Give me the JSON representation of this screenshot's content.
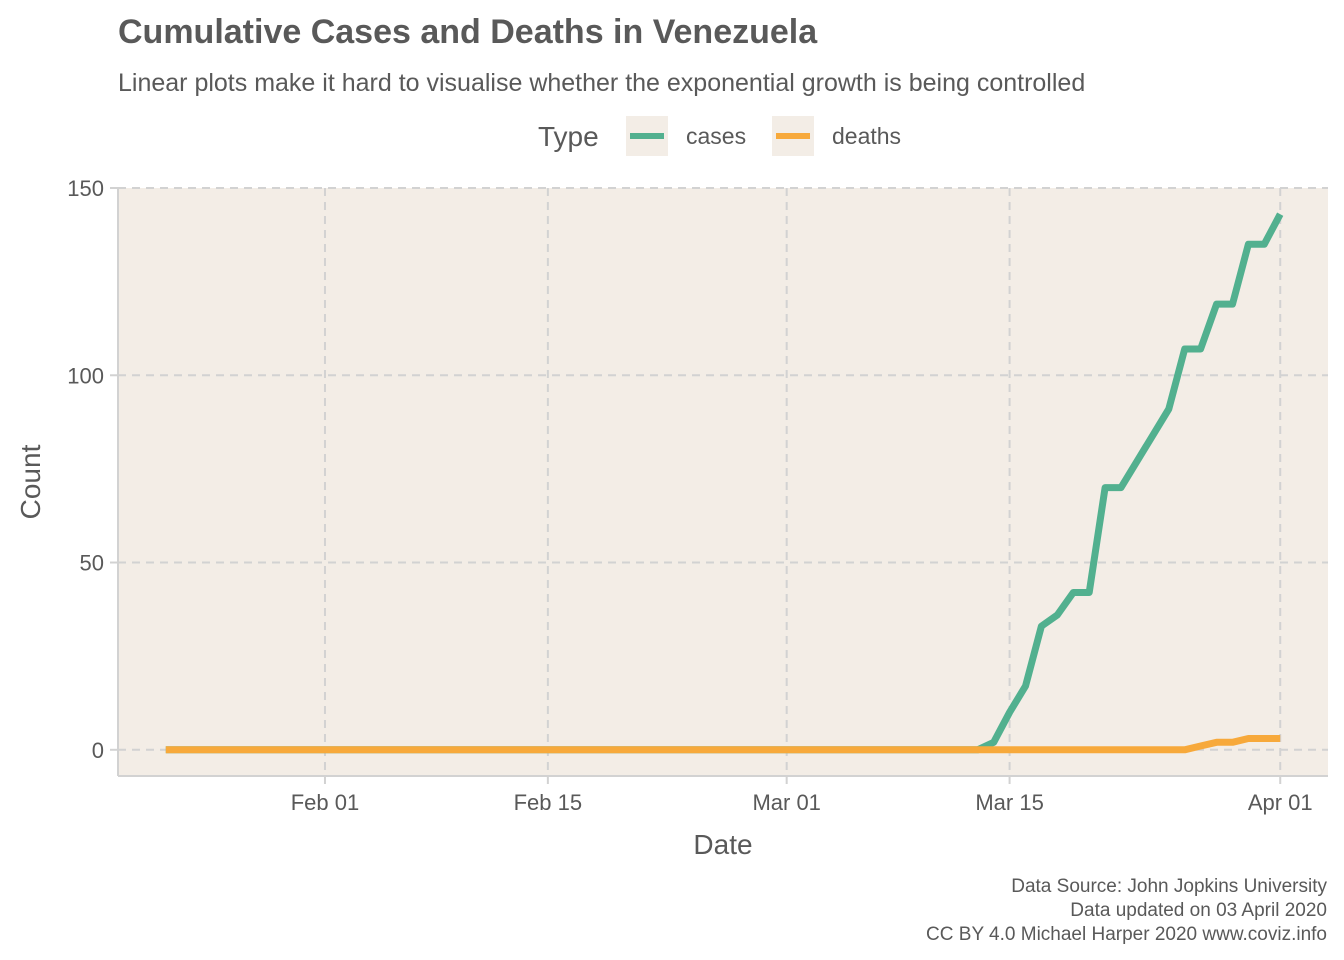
{
  "chart_data": {
    "type": "line",
    "title": "Cumulative Cases and Deaths in Venezuela",
    "subtitle": "Linear plots make it hard to visualise whether the exponential growth is being controlled",
    "xlabel": "Date",
    "ylabel": "Count",
    "legend": {
      "title": "Type",
      "position": "top",
      "items": [
        {
          "label": "cases",
          "color": "#52b08f"
        },
        {
          "label": "deaths",
          "color": "#f7a93b"
        }
      ]
    },
    "x_range": [
      "2020-01-19",
      "2020-04-04"
    ],
    "ylim": [
      -7,
      150
    ],
    "x_ticks": [
      {
        "date": "2020-02-01",
        "label": "Feb 01"
      },
      {
        "date": "2020-02-15",
        "label": "Feb 15"
      },
      {
        "date": "2020-03-01",
        "label": "Mar 01"
      },
      {
        "date": "2020-03-15",
        "label": "Mar 15"
      },
      {
        "date": "2020-04-01",
        "label": "Apr 01"
      }
    ],
    "y_ticks": [
      0,
      50,
      100,
      150
    ],
    "grid": true,
    "panel_background": "#f3ede6",
    "series": [
      {
        "name": "cases",
        "color": "#52b08f",
        "points": [
          [
            "2020-01-22",
            0
          ],
          [
            "2020-03-13",
            0
          ],
          [
            "2020-03-14",
            2
          ],
          [
            "2020-03-15",
            10
          ],
          [
            "2020-03-16",
            17
          ],
          [
            "2020-03-17",
            33
          ],
          [
            "2020-03-18",
            36
          ],
          [
            "2020-03-19",
            42
          ],
          [
            "2020-03-20",
            42
          ],
          [
            "2020-03-21",
            70
          ],
          [
            "2020-03-22",
            70
          ],
          [
            "2020-03-23",
            77
          ],
          [
            "2020-03-24",
            84
          ],
          [
            "2020-03-25",
            91
          ],
          [
            "2020-03-26",
            107
          ],
          [
            "2020-03-27",
            107
          ],
          [
            "2020-03-28",
            119
          ],
          [
            "2020-03-29",
            119
          ],
          [
            "2020-03-30",
            135
          ],
          [
            "2020-03-31",
            135
          ],
          [
            "2020-04-01",
            143
          ]
        ]
      },
      {
        "name": "deaths",
        "color": "#f7a93b",
        "points": [
          [
            "2020-01-22",
            0
          ],
          [
            "2020-03-26",
            0
          ],
          [
            "2020-03-27",
            1
          ],
          [
            "2020-03-28",
            2
          ],
          [
            "2020-03-29",
            2
          ],
          [
            "2020-03-30",
            3
          ],
          [
            "2020-03-31",
            3
          ],
          [
            "2020-04-01",
            3
          ]
        ]
      }
    ]
  },
  "caption": {
    "line1": "Data Source: John Jopkins University",
    "line2": "Data updated on 03 April 2020",
    "line3": "CC BY 4.0 Michael Harper 2020 www.coviz.info"
  }
}
